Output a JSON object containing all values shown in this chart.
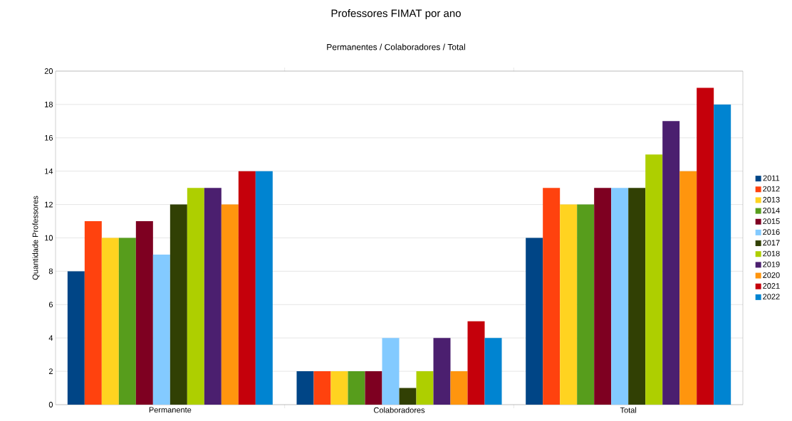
{
  "chart_data": {
    "type": "bar",
    "title": "Professores FIMAT por ano",
    "subtitle": "Permanentes / Colaboradores / Total",
    "ylabel": "Quantidade Professores",
    "categories": [
      "Permanente",
      "Colaboradores",
      "Total"
    ],
    "series": [
      {
        "name": "2011",
        "color": "#004586",
        "values": [
          8,
          2,
          10
        ]
      },
      {
        "name": "2012",
        "color": "#ff420e",
        "values": [
          11,
          2,
          13
        ]
      },
      {
        "name": "2013",
        "color": "#ffd320",
        "values": [
          10,
          2,
          12
        ]
      },
      {
        "name": "2014",
        "color": "#579d1c",
        "values": [
          10,
          2,
          12
        ]
      },
      {
        "name": "2015",
        "color": "#7e0021",
        "values": [
          11,
          2,
          13
        ]
      },
      {
        "name": "2016",
        "color": "#83caff",
        "values": [
          9,
          4,
          13
        ]
      },
      {
        "name": "2017",
        "color": "#314004",
        "values": [
          12,
          1,
          13
        ]
      },
      {
        "name": "2018",
        "color": "#aecf00",
        "values": [
          13,
          2,
          15
        ]
      },
      {
        "name": "2019",
        "color": "#4b1f6f",
        "values": [
          13,
          4,
          17
        ]
      },
      {
        "name": "2020",
        "color": "#ff950e",
        "values": [
          12,
          2,
          14
        ]
      },
      {
        "name": "2021",
        "color": "#c5000b",
        "values": [
          14,
          5,
          19
        ]
      },
      {
        "name": "2022",
        "color": "#0084d1",
        "values": [
          14,
          4,
          18
        ]
      }
    ],
    "ylim": [
      0,
      20
    ],
    "yticks": [
      0,
      2,
      4,
      6,
      8,
      10,
      12,
      14,
      16,
      18,
      20
    ],
    "grid": "y",
    "legend": "right"
  }
}
